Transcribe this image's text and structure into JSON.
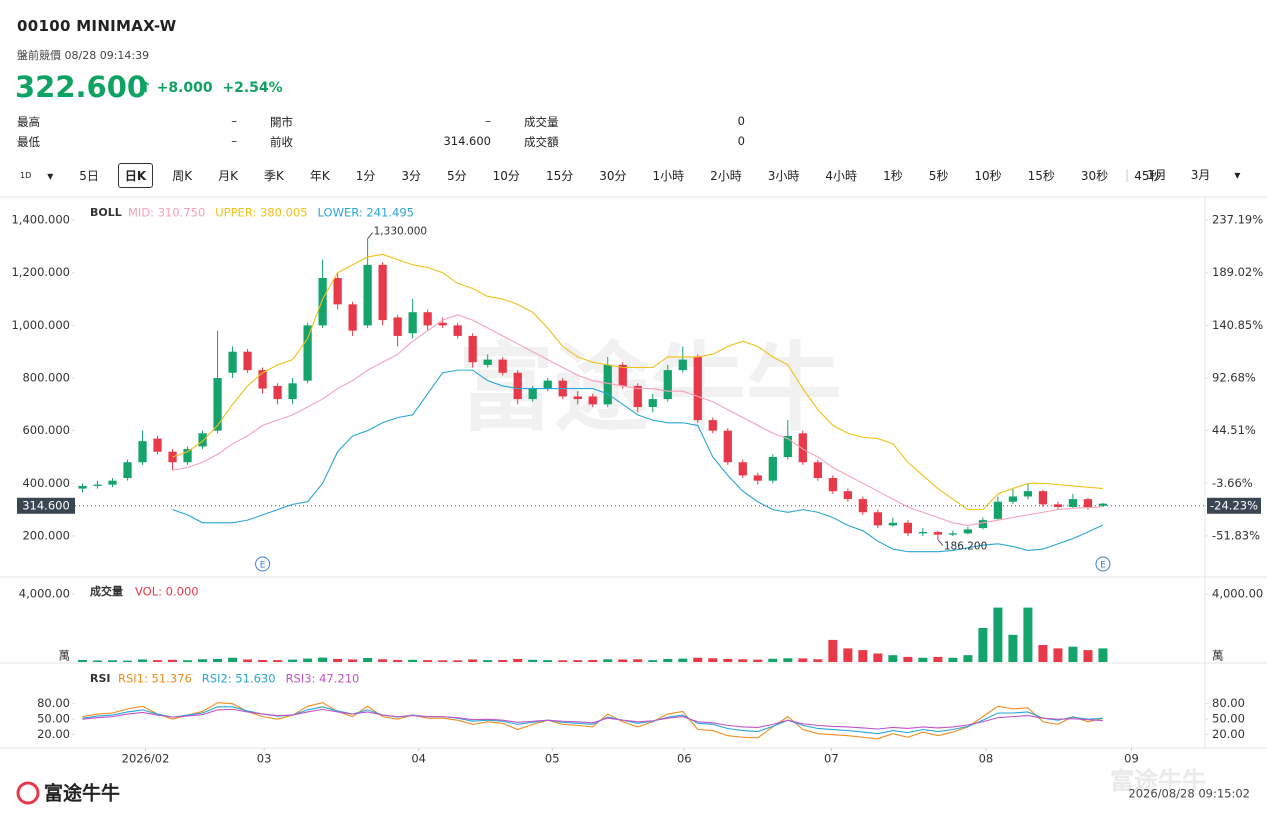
{
  "header": {
    "code": "00100  MINIMAX-W",
    "status": "盤前競價 08/28 09:14:39",
    "price": "322.600",
    "change": "+8.000",
    "change_pct": "+2.54%"
  },
  "stats": [
    [
      {
        "label": "最高",
        "value": "–"
      },
      {
        "label": "開市",
        "value": "–"
      },
      {
        "label": "成交量",
        "value": "0"
      }
    ],
    [
      {
        "label": "最低",
        "value": "–"
      },
      {
        "label": "前收",
        "value": "314.600"
      },
      {
        "label": "成交額",
        "value": "0"
      }
    ]
  ],
  "tabs": {
    "icon": "1D",
    "items": [
      "5日",
      "日K",
      "周K",
      "月K",
      "季K",
      "年K",
      "1分",
      "3分",
      "5分",
      "10分",
      "15分",
      "30分",
      "1小時",
      "2小時",
      "3小時",
      "4小時",
      "1秒",
      "5秒",
      "10秒",
      "15秒",
      "30秒",
      "45秒"
    ],
    "selected": 1,
    "extra": [
      "1月",
      "3月"
    ]
  },
  "chart_data": [
    {
      "type": "candlestick",
      "indicator": "BOLL",
      "up_color": "#14a36b",
      "down_color": "#e8394a",
      "xlim": [
        -0.5,
        74.8
      ],
      "ylim": [
        44,
        1484
      ],
      "yticks": [
        {
          "value": 1400,
          "label": "1,400.000"
        },
        {
          "value": 1200,
          "label": "1,200.000"
        },
        {
          "value": 1000,
          "label": "1,000.000"
        },
        {
          "value": 800,
          "label": "800.000"
        },
        {
          "value": 600,
          "label": "600.000"
        },
        {
          "value": 400,
          "label": "400.000"
        },
        {
          "value": 200,
          "label": "200.000"
        }
      ],
      "y2lim": [
        -89.4,
        257.42
      ],
      "y2ticks": [
        {
          "value": 237.19,
          "label": "237.19%"
        },
        {
          "value": 189.02,
          "label": "189.02%"
        },
        {
          "value": 140.85,
          "label": "140.85%"
        },
        {
          "value": 92.68,
          "label": "92.68%"
        },
        {
          "value": 44.51,
          "label": "44.51%"
        },
        {
          "value": -3.66,
          "label": "-3.66%"
        },
        {
          "value": -51.83,
          "label": "-51.83%"
        }
      ],
      "last": {
        "value": 314.6,
        "label": "314.600",
        "pct_label": "-24.23%"
      },
      "candles": {
        "open": [
          380,
          390,
          395,
          420,
          480,
          570,
          520,
          480,
          540,
          600,
          820,
          900,
          830,
          770,
          720,
          790,
          1000,
          1180,
          1080,
          1000,
          1230,
          1030,
          970,
          1050,
          1010,
          1000,
          960,
          850,
          870,
          820,
          720,
          760,
          790,
          730,
          730,
          700,
          850,
          770,
          690,
          720,
          830,
          880,
          640,
          600,
          480,
          430,
          410,
          500,
          590,
          480,
          420,
          370,
          340,
          290,
          240,
          250,
          210,
          215,
          205,
          210,
          230,
          265,
          330,
          350,
          370,
          320,
          310,
          340,
          314.6
        ],
        "high": [
          400,
          410,
          420,
          490,
          600,
          580,
          530,
          540,
          600,
          980,
          920,
          910,
          840,
          780,
          800,
          1010,
          1250,
          1200,
          1090,
          1330,
          1240,
          1040,
          1100,
          1060,
          1030,
          1010,
          970,
          890,
          880,
          830,
          770,
          800,
          800,
          750,
          740,
          880,
          860,
          780,
          740,
          850,
          920,
          890,
          650,
          610,
          490,
          440,
          510,
          640,
          600,
          490,
          430,
          380,
          350,
          300,
          270,
          260,
          230,
          220,
          220,
          235,
          270,
          350,
          380,
          400,
          375,
          330,
          360,
          345,
          325
        ],
        "low": [
          365,
          380,
          385,
          410,
          470,
          510,
          450,
          470,
          530,
          590,
          800,
          820,
          740,
          700,
          700,
          780,
          990,
          1060,
          960,
          990,
          1000,
          920,
          950,
          980,
          990,
          950,
          840,
          840,
          810,
          700,
          710,
          750,
          720,
          700,
          690,
          690,
          760,
          670,
          670,
          710,
          820,
          630,
          590,
          470,
          420,
          395,
          400,
          490,
          470,
          410,
          360,
          330,
          280,
          230,
          235,
          200,
          200,
          186.2,
          200,
          205,
          225,
          260,
          320,
          340,
          310,
          300,
          305,
          300,
          310
        ],
        "close": [
          390,
          395,
          410,
          480,
          560,
          520,
          480,
          530,
          590,
          800,
          900,
          830,
          760,
          720,
          780,
          1000,
          1180,
          1080,
          980,
          1230,
          1020,
          960,
          1050,
          1000,
          1000,
          960,
          860,
          870,
          820,
          720,
          760,
          790,
          730,
          720,
          700,
          850,
          770,
          690,
          720,
          830,
          870,
          640,
          600,
          480,
          430,
          410,
          500,
          580,
          480,
          420,
          370,
          340,
          290,
          240,
          250,
          210,
          215,
          205,
          210,
          225,
          260,
          330,
          350,
          370,
          320,
          310,
          340,
          310,
          322.6
        ]
      },
      "series": [
        {
          "name": "MID: 310.750",
          "color": "#f4a3b8",
          "values": [
            null,
            null,
            null,
            null,
            null,
            null,
            450,
            460,
            480,
            510,
            550,
            580,
            620,
            640,
            660,
            690,
            720,
            760,
            790,
            830,
            860,
            890,
            940,
            980,
            1020,
            1040,
            1020,
            990,
            960,
            930,
            900,
            870,
            840,
            810,
            790,
            780,
            770,
            760,
            760,
            750,
            750,
            730,
            710,
            680,
            650,
            620,
            590,
            570,
            530,
            500,
            460,
            430,
            400,
            370,
            340,
            310,
            290,
            270,
            250,
            240,
            250,
            260,
            270,
            280,
            290,
            300,
            305,
            308,
            310.75
          ]
        },
        {
          "name": "UPPER: 380.005",
          "color": "#f2c018",
          "values": [
            null,
            null,
            null,
            null,
            null,
            null,
            500,
            520,
            560,
            620,
            700,
            770,
            820,
            850,
            870,
            950,
            1100,
            1200,
            1230,
            1260,
            1270,
            1250,
            1230,
            1220,
            1200,
            1160,
            1140,
            1110,
            1100,
            1080,
            1050,
            990,
            920,
            880,
            860,
            850,
            840,
            840,
            840,
            880,
            880,
            880,
            890,
            920,
            940,
            920,
            880,
            850,
            760,
            680,
            620,
            590,
            575,
            570,
            550,
            480,
            430,
            380,
            340,
            300,
            300,
            360,
            380,
            400,
            400,
            395,
            390,
            385,
            380.005
          ]
        },
        {
          "name": "LOWER: 241.495",
          "color": "#2aa6d6",
          "values": [
            null,
            null,
            null,
            null,
            null,
            null,
            300,
            280,
            250,
            250,
            250,
            260,
            280,
            300,
            320,
            330,
            400,
            520,
            580,
            600,
            630,
            650,
            660,
            740,
            820,
            830,
            830,
            790,
            770,
            760,
            760,
            760,
            760,
            760,
            760,
            740,
            700,
            660,
            640,
            630,
            630,
            620,
            500,
            430,
            370,
            330,
            300,
            290,
            300,
            290,
            270,
            240,
            220,
            180,
            150,
            140,
            140,
            140,
            145,
            155,
            165,
            170,
            160,
            145,
            150,
            170,
            190,
            215,
            241.495
          ]
        }
      ],
      "annotations": [
        {
          "index": 19,
          "value": 1330,
          "label": "1,330.000"
        },
        {
          "index": 57,
          "value": 186.2,
          "label": "186.200"
        }
      ],
      "events": [
        {
          "index": 12,
          "label": "E"
        },
        {
          "index": 68,
          "label": "E"
        }
      ]
    },
    {
      "type": "bar",
      "title": "成交量",
      "legend": "VOL: 0.000",
      "legend_color": "#e8394a",
      "unit": "萬",
      "xlim": [
        -0.5,
        74.8
      ],
      "ylim": [
        0,
        5000
      ],
      "yticks": [
        {
          "value": 4000,
          "label": "4,000.00"
        }
      ],
      "values": [
        120,
        90,
        100,
        80,
        150,
        110,
        130,
        100,
        160,
        180,
        250,
        150,
        120,
        110,
        140,
        200,
        260,
        180,
        150,
        240,
        160,
        120,
        130,
        110,
        100,
        100,
        150,
        110,
        120,
        180,
        130,
        110,
        100,
        110,
        120,
        160,
        150,
        160,
        110,
        180,
        200,
        250,
        220,
        180,
        160,
        140,
        190,
        220,
        210,
        160,
        1300,
        800,
        700,
        500,
        400,
        300,
        250,
        300,
        250,
        400,
        2000,
        3200,
        1600,
        3200,
        1000,
        800,
        900,
        700,
        800
      ]
    },
    {
      "type": "line",
      "title": "RSI",
      "xlim": [
        -0.5,
        74.8
      ],
      "ylim": [
        0,
        155
      ],
      "yticks": [
        {
          "value": 80,
          "label": "80.00"
        },
        {
          "value": 50,
          "label": "50.00"
        },
        {
          "value": 20,
          "label": "20.00"
        }
      ],
      "xticks": [
        {
          "value": 4.2,
          "label": "2026/02"
        },
        {
          "value": 12.1,
          "label": "03"
        },
        {
          "value": 22.4,
          "label": "04"
        },
        {
          "value": 31.3,
          "label": "05"
        },
        {
          "value": 40.1,
          "label": "06"
        },
        {
          "value": 49.9,
          "label": "07"
        },
        {
          "value": 60.2,
          "label": "08"
        },
        {
          "value": 69.9,
          "label": "09"
        }
      ],
      "series": [
        {
          "name": "RSI1: 51.376",
          "color": "#f08c1e",
          "values": [
            55,
            60,
            62,
            70,
            75,
            60,
            50,
            58,
            65,
            82,
            80,
            65,
            55,
            50,
            58,
            75,
            82,
            65,
            55,
            75,
            55,
            50,
            58,
            52,
            52,
            48,
            40,
            45,
            42,
            30,
            40,
            48,
            40,
            38,
            35,
            60,
            45,
            35,
            45,
            60,
            65,
            30,
            28,
            18,
            15,
            14,
            35,
            55,
            30,
            22,
            20,
            18,
            15,
            12,
            22,
            15,
            25,
            18,
            25,
            35,
            55,
            75,
            70,
            72,
            45,
            40,
            55,
            45,
            51.376
          ]
        },
        {
          "name": "RSI2: 51.630",
          "color": "#2aa6d6",
          "values": [
            52,
            56,
            58,
            64,
            68,
            60,
            54,
            58,
            62,
            74,
            74,
            66,
            60,
            56,
            58,
            68,
            74,
            66,
            60,
            68,
            58,
            54,
            58,
            55,
            55,
            52,
            46,
            48,
            46,
            40,
            44,
            48,
            44,
            42,
            40,
            54,
            48,
            42,
            46,
            54,
            58,
            42,
            40,
            32,
            28,
            26,
            36,
            48,
            38,
            32,
            30,
            28,
            25,
            22,
            28,
            24,
            30,
            26,
            30,
            36,
            48,
            62,
            62,
            64,
            52,
            48,
            54,
            50,
            51.63
          ]
        },
        {
          "name": "RSI3: 47.210",
          "color": "#c055c8",
          "values": [
            50,
            53,
            55,
            60,
            63,
            58,
            54,
            56,
            59,
            68,
            69,
            64,
            60,
            57,
            58,
            64,
            69,
            64,
            60,
            64,
            58,
            55,
            57,
            55,
            55,
            53,
            49,
            50,
            48,
            44,
            46,
            48,
            46,
            45,
            43,
            52,
            48,
            45,
            47,
            52,
            55,
            45,
            43,
            38,
            35,
            34,
            40,
            48,
            41,
            38,
            36,
            35,
            33,
            31,
            34,
            32,
            35,
            33,
            35,
            39,
            45,
            53,
            55,
            57,
            52,
            50,
            51,
            49,
            47.21
          ]
        }
      ]
    }
  ],
  "footer": {
    "logo": "富途牛牛",
    "timestamp": "2026/08/28 09:15:02"
  }
}
